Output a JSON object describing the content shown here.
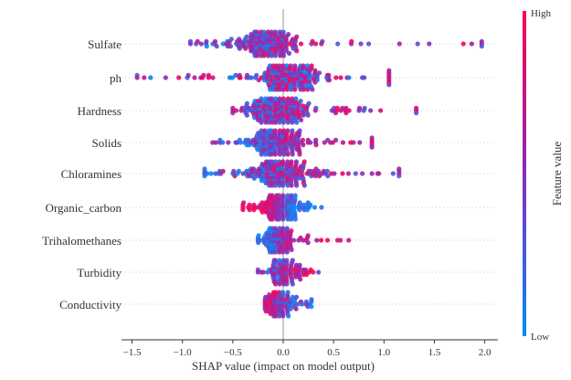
{
  "chart_data": {
    "type": "scatter",
    "subtype": "shap-beeswarm",
    "title": "",
    "xlabel": "SHAP value (impact on model output)",
    "xlim": [
      -1.6,
      2.1
    ],
    "xticks": [
      -1.5,
      -1.0,
      -0.5,
      0.0,
      0.5,
      1.0,
      1.5,
      2.0
    ],
    "xtick_labels": [
      "−1.5",
      "−1.0",
      "−0.5",
      "0.0",
      "0.5",
      "1.0",
      "1.5",
      "2.0"
    ],
    "colorbar": {
      "label": "Feature value",
      "high": "High",
      "low": "Low",
      "high_color": "#ff0052",
      "low_color": "#008bfb"
    },
    "features": [
      {
        "name": "Sulfate",
        "min": -0.92,
        "max": 1.97,
        "center": -0.15,
        "spread": 0.12,
        "count": 300,
        "trend": 0.3
      },
      {
        "name": "ph",
        "min": -1.45,
        "max": 1.05,
        "center": 0.05,
        "spread": 0.13,
        "count": 300,
        "trend": 0.0
      },
      {
        "name": "Hardness",
        "min": -0.5,
        "max": 1.32,
        "center": -0.05,
        "spread": 0.13,
        "count": 280,
        "trend": 0.2
      },
      {
        "name": "Solids",
        "min": -0.7,
        "max": 0.88,
        "center": -0.05,
        "spread": 0.13,
        "count": 260,
        "trend": 0.5
      },
      {
        "name": "Chloramines",
        "min": -0.78,
        "max": 1.15,
        "center": -0.03,
        "spread": 0.14,
        "count": 270,
        "trend": 0.3
      },
      {
        "name": "Organic_carbon",
        "min": -0.4,
        "max": 0.38,
        "center": -0.02,
        "spread": 0.09,
        "count": 220,
        "trend": -0.9
      },
      {
        "name": "Trihalomethanes",
        "min": -0.25,
        "max": 0.65,
        "center": -0.03,
        "spread": 0.06,
        "count": 220,
        "trend": 0.8
      },
      {
        "name": "Turbidity",
        "min": -0.25,
        "max": 0.35,
        "center": 0.0,
        "spread": 0.06,
        "count": 180,
        "trend": 0.4
      },
      {
        "name": "Conductivity",
        "min": -0.18,
        "max": 0.28,
        "center": -0.02,
        "spread": 0.05,
        "count": 170,
        "trend": -0.5
      }
    ]
  }
}
